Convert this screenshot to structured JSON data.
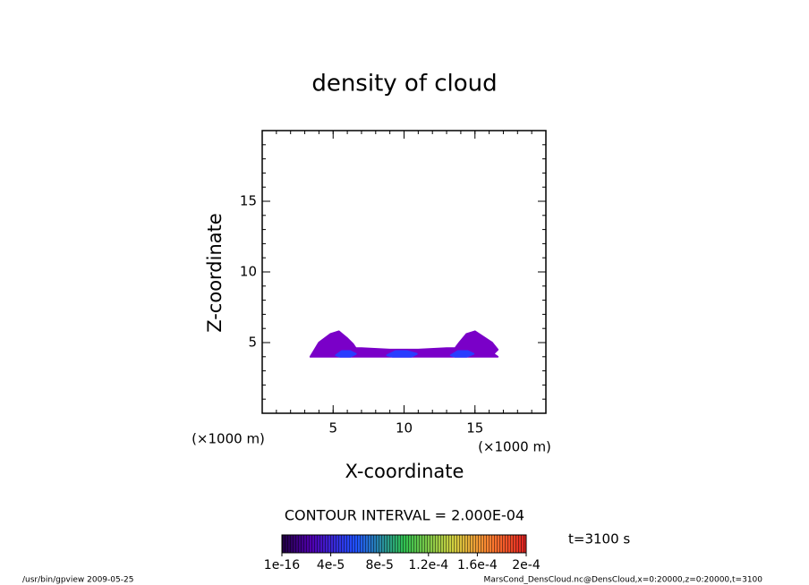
{
  "chart_data": {
    "type": "contour",
    "title": "density of cloud",
    "x_label": "X-coordinate",
    "y_label": "Z-coordinate",
    "x_unit": "(×1000 m)",
    "y_unit": "(×1000 m)",
    "xlim": [
      0,
      20
    ],
    "ylim": [
      0,
      20
    ],
    "xticks": [
      5,
      10,
      15
    ],
    "yticks": [
      5,
      10,
      15
    ],
    "minor_ticks": true,
    "regions": [
      {
        "level": 1e-16,
        "color": "#7a00c8",
        "x": [
          3.4,
          4.0,
          4.8,
          5.4,
          6.0,
          6.4,
          6.6,
          7.0,
          9.0,
          11.0,
          13.0,
          13.6,
          13.9,
          14.4,
          15.0,
          15.6,
          16.2,
          16.6,
          16.3,
          16.6,
          3.4,
          3.7
        ],
        "z": [
          4.0,
          5.0,
          5.6,
          5.8,
          5.3,
          4.9,
          4.6,
          4.6,
          4.5,
          4.5,
          4.6,
          4.6,
          5.0,
          5.6,
          5.8,
          5.4,
          5.0,
          4.5,
          4.2,
          4.0,
          4.0,
          4.3
        ]
      },
      {
        "level": 4e-05,
        "color": "#2a3cff",
        "x": [
          5.2,
          5.6,
          6.2,
          6.6,
          6.2,
          5.5
        ],
        "z": [
          4.1,
          4.4,
          4.4,
          4.2,
          4.0,
          4.0
        ]
      },
      {
        "level": 4e-05,
        "color": "#2a3cff",
        "x": [
          8.8,
          9.4,
          10.2,
          10.9,
          10.5,
          9.2
        ],
        "z": [
          4.1,
          4.4,
          4.4,
          4.2,
          4.0,
          4.0
        ]
      },
      {
        "level": 4e-05,
        "color": "#2a3cff",
        "x": [
          13.3,
          13.8,
          14.5,
          14.9,
          14.4,
          13.6
        ],
        "z": [
          4.1,
          4.4,
          4.4,
          4.2,
          4.0,
          4.0
        ]
      }
    ],
    "contour_interval": "CONTOUR INTERVAL = 2.000E-04",
    "time_label": "t=3100 s",
    "clim": [
      0,
      0.0002
    ],
    "colorbar_ticks": [
      {
        "value": 1e-16,
        "label": "1e-16"
      },
      {
        "value": 4e-05,
        "label": "4e-5"
      },
      {
        "value": 8e-05,
        "label": "8e-5"
      },
      {
        "value": 0.00012,
        "label": "1.2e-4"
      },
      {
        "value": 0.00016,
        "label": "1.6e-4"
      },
      {
        "value": 0.0002,
        "label": "2e-4"
      }
    ],
    "footer_left": "/usr/bin/gpview  2009-05-25",
    "footer_right": "MarsCond_DensCloud.nc@DensCloud,x=0:20000,z=0:20000,t=3100"
  }
}
